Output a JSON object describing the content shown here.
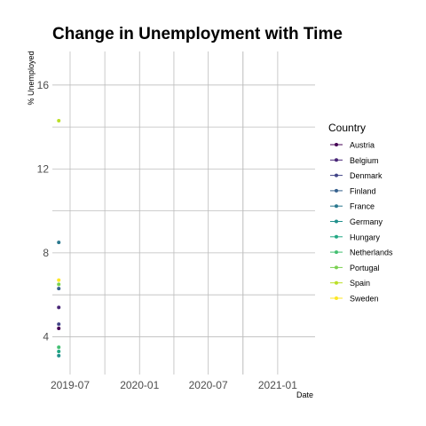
{
  "chart_data": {
    "type": "scatter",
    "title": "Change in Unemployment with Time",
    "xlabel": "Date",
    "ylabel": "% Unemployed",
    "x_type": "date",
    "xlim": [
      "2019-05-15",
      "2021-04-10"
    ],
    "ylim": [
      2.2,
      17.6
    ],
    "x_ticks": [
      "2019-07",
      "2020-01",
      "2020-07",
      "2021-01"
    ],
    "y_ticks": [
      4,
      8,
      12,
      16
    ],
    "grid": true,
    "legend": {
      "title": "Country",
      "position": "right"
    },
    "series": [
      {
        "name": "Austria",
        "color": "#440154",
        "points": [
          {
            "x": "2019-06-01",
            "y": 4.4
          }
        ]
      },
      {
        "name": "Belgium",
        "color": "#482576",
        "points": [
          {
            "x": "2019-06-01",
            "y": 5.4
          }
        ]
      },
      {
        "name": "Denmark",
        "color": "#414487",
        "points": [
          {
            "x": "2019-06-01",
            "y": 4.6
          }
        ]
      },
      {
        "name": "Finland",
        "color": "#35608D",
        "points": [
          {
            "x": "2019-06-01",
            "y": 6.3
          }
        ]
      },
      {
        "name": "France",
        "color": "#2A788E",
        "points": [
          {
            "x": "2019-06-01",
            "y": 8.5
          }
        ]
      },
      {
        "name": "Germany",
        "color": "#21908C",
        "points": [
          {
            "x": "2019-06-01",
            "y": 3.1
          }
        ]
      },
      {
        "name": "Hungary",
        "color": "#22A884",
        "points": [
          {
            "x": "2019-06-01",
            "y": 3.3
          }
        ]
      },
      {
        "name": "Netherlands",
        "color": "#43BF71",
        "points": [
          {
            "x": "2019-06-01",
            "y": 3.5
          }
        ]
      },
      {
        "name": "Portugal",
        "color": "#7AD151",
        "points": [
          {
            "x": "2019-06-01",
            "y": 6.5
          }
        ]
      },
      {
        "name": "Spain",
        "color": "#BBDF27",
        "points": [
          {
            "x": "2019-06-01",
            "y": 14.3
          }
        ]
      },
      {
        "name": "Sweden",
        "color": "#FDE725",
        "points": [
          {
            "x": "2019-06-01",
            "y": 6.7
          }
        ]
      }
    ]
  }
}
